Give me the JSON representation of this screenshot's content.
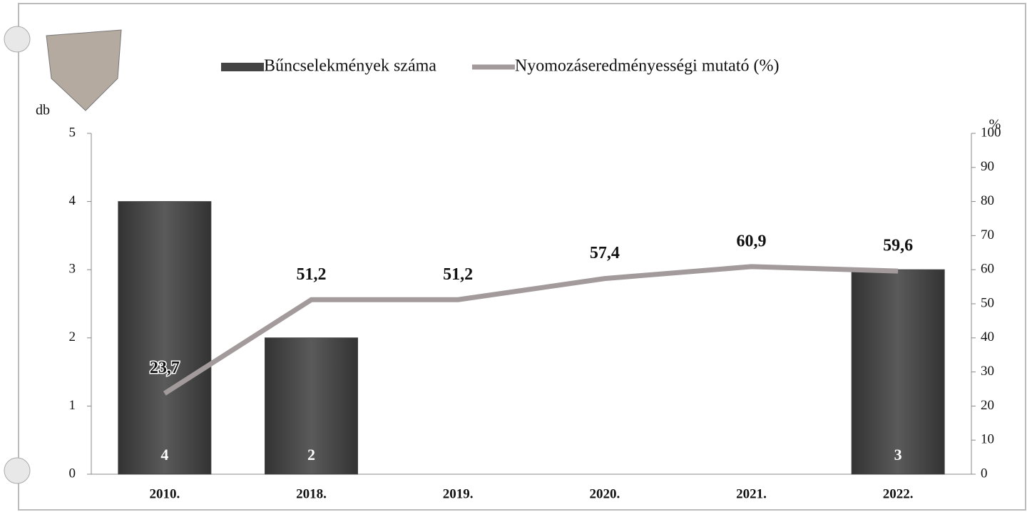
{
  "chart_data": {
    "type": "bar-line",
    "ylabel": "db",
    "y2label": "%",
    "categories": [
      "2010.",
      "2018.",
      "2019.",
      "2020.",
      "2021.",
      "2022."
    ],
    "series": [
      {
        "name": "Bűncselekmények száma",
        "type": "bar",
        "color": "#444444",
        "values": [
          4,
          2,
          null,
          null,
          null,
          3
        ]
      },
      {
        "name": "Nyomozáseredményességi mutató (%)",
        "type": "line",
        "axis": "y2",
        "color": "#a39b9b",
        "values": [
          23.7,
          51.2,
          51.2,
          57.4,
          60.9,
          59.6
        ],
        "value_labels": [
          "23,7",
          "51,2",
          "51,2",
          "57,4",
          "60,9",
          "59,6"
        ]
      }
    ],
    "ylim": [
      0,
      5
    ],
    "yticks": [
      0,
      1,
      2,
      3,
      4,
      5
    ],
    "y2lim": [
      0,
      100
    ],
    "y2ticks": [
      0,
      10,
      20,
      30,
      40,
      50,
      60,
      70,
      80,
      90,
      100
    ]
  }
}
